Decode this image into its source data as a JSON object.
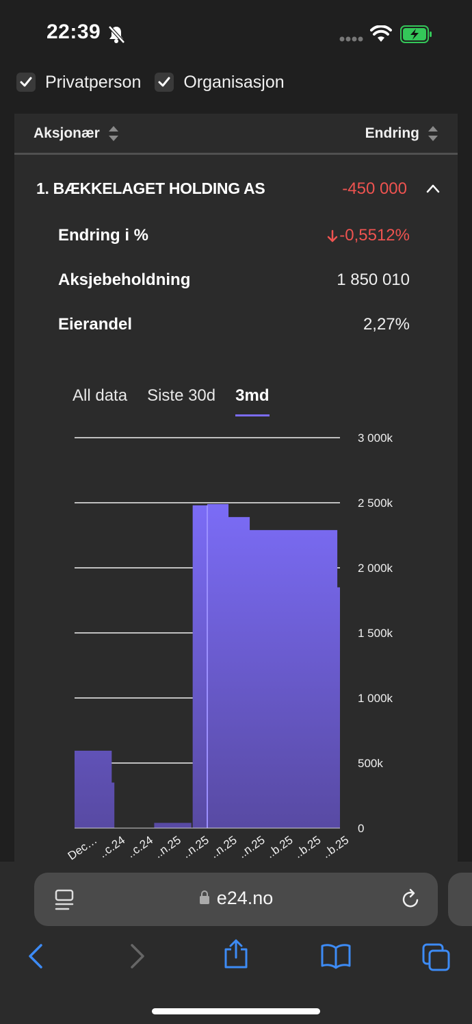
{
  "status_bar": {
    "time": "22:39"
  },
  "filters": [
    {
      "label": "Privatperson",
      "checked": true
    },
    {
      "label": "Organisasjon",
      "checked": true
    }
  ],
  "table": {
    "col_shareholder": "Aksjonær",
    "col_change": "Endring",
    "row": {
      "name": "1. BÆKKELAGET HOLDING AS",
      "change": "-450 000",
      "details": [
        {
          "label": "Endring i %",
          "value": "-0,5512%",
          "trend": "down"
        },
        {
          "label": "Aksjebeholdning",
          "value": "1 850 010"
        },
        {
          "label": "Eierandel",
          "value": "2,27%"
        }
      ]
    }
  },
  "chart_tabs": [
    {
      "label": "All data",
      "active": false
    },
    {
      "label": "Siste 30d",
      "active": false
    },
    {
      "label": "3md",
      "active": true
    }
  ],
  "chart_data": {
    "type": "area",
    "y_ticks": [
      "3 000k",
      "2 500k",
      "2 000k",
      "1 500k",
      "1 000k",
      "500k",
      "0"
    ],
    "ylim": [
      0,
      3000000
    ],
    "x_ticks": [
      "Dec…",
      "..c.24",
      "..c.24",
      "..n.25",
      "..n.25",
      "..n.25",
      "..n.25",
      "..b.25",
      "..b.25",
      "..b.25"
    ],
    "x": [
      0,
      0.14,
      0.14,
      0.15,
      0.15,
      0.3,
      0.3,
      0.44,
      0.44,
      0.445,
      0.445,
      0.5,
      0.5,
      0.58,
      0.58,
      0.66,
      0.66,
      0.99,
      0.99,
      1.0
    ],
    "values": [
      595000,
      595000,
      350000,
      350000,
      0,
      0,
      40000,
      40000,
      0,
      0,
      2480000,
      2480000,
      2490000,
      2490000,
      2390000,
      2390000,
      2290000,
      2290000,
      1850000,
      1850000
    ],
    "color": "#7b6cf6",
    "grid": true
  },
  "browser": {
    "url": "e24.no"
  },
  "colors": {
    "accent": "#7b6cf6",
    "negative": "#ef5350",
    "bg": "#1f1f1f",
    "card": "#2b2b2b"
  }
}
